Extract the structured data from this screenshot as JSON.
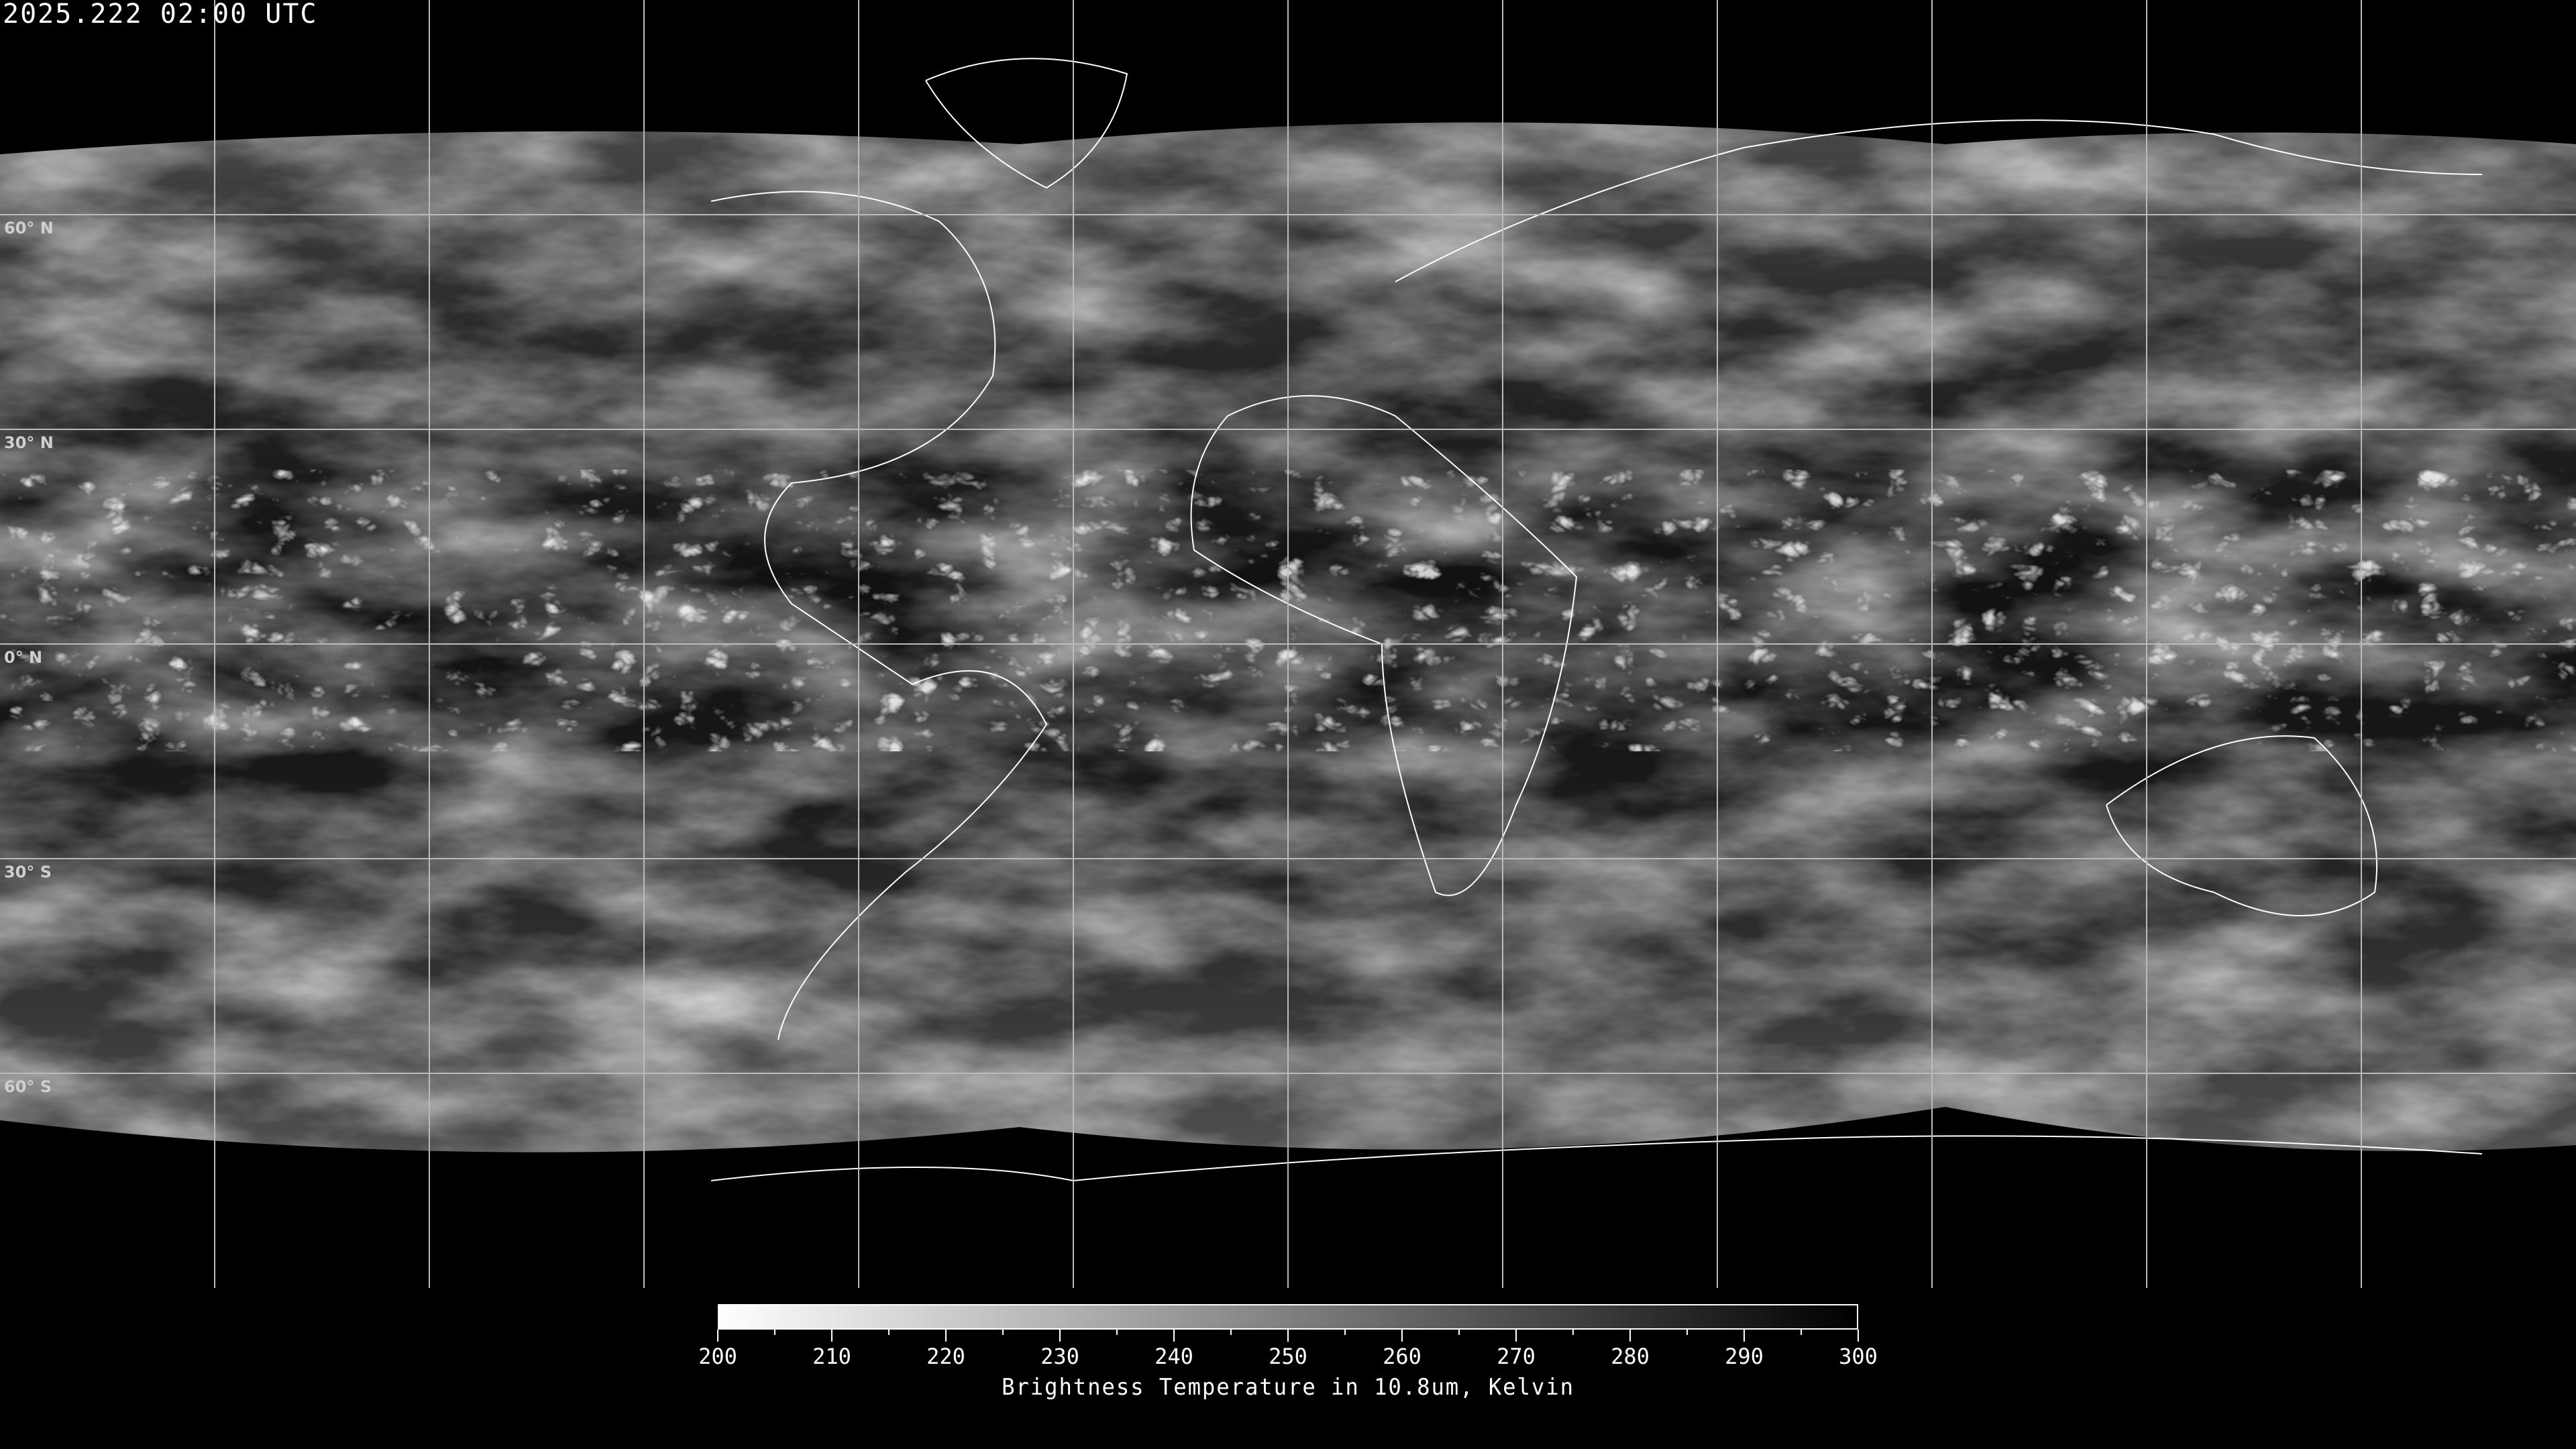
{
  "title": "2025.222 02:00 UTC",
  "map": {
    "projection": "equirectangular",
    "grid_spacing_deg": 30,
    "grid_color": "#bbbbbb",
    "lat_labels": [
      "60° N",
      "30° N",
      "0° N",
      "30° S",
      "60° S"
    ],
    "coastline_color": "#ffffff",
    "background": "#000000"
  },
  "colorbar": {
    "min": 200,
    "max": 300,
    "minor_step": 5,
    "ticks": [
      "200",
      "210",
      "220",
      "230",
      "240",
      "250",
      "260",
      "270",
      "280",
      "290",
      "300"
    ],
    "label": "Brightness Temperature in 10.8um, Kelvin",
    "colormap": "gray reversed (200 white, 300 black)"
  }
}
